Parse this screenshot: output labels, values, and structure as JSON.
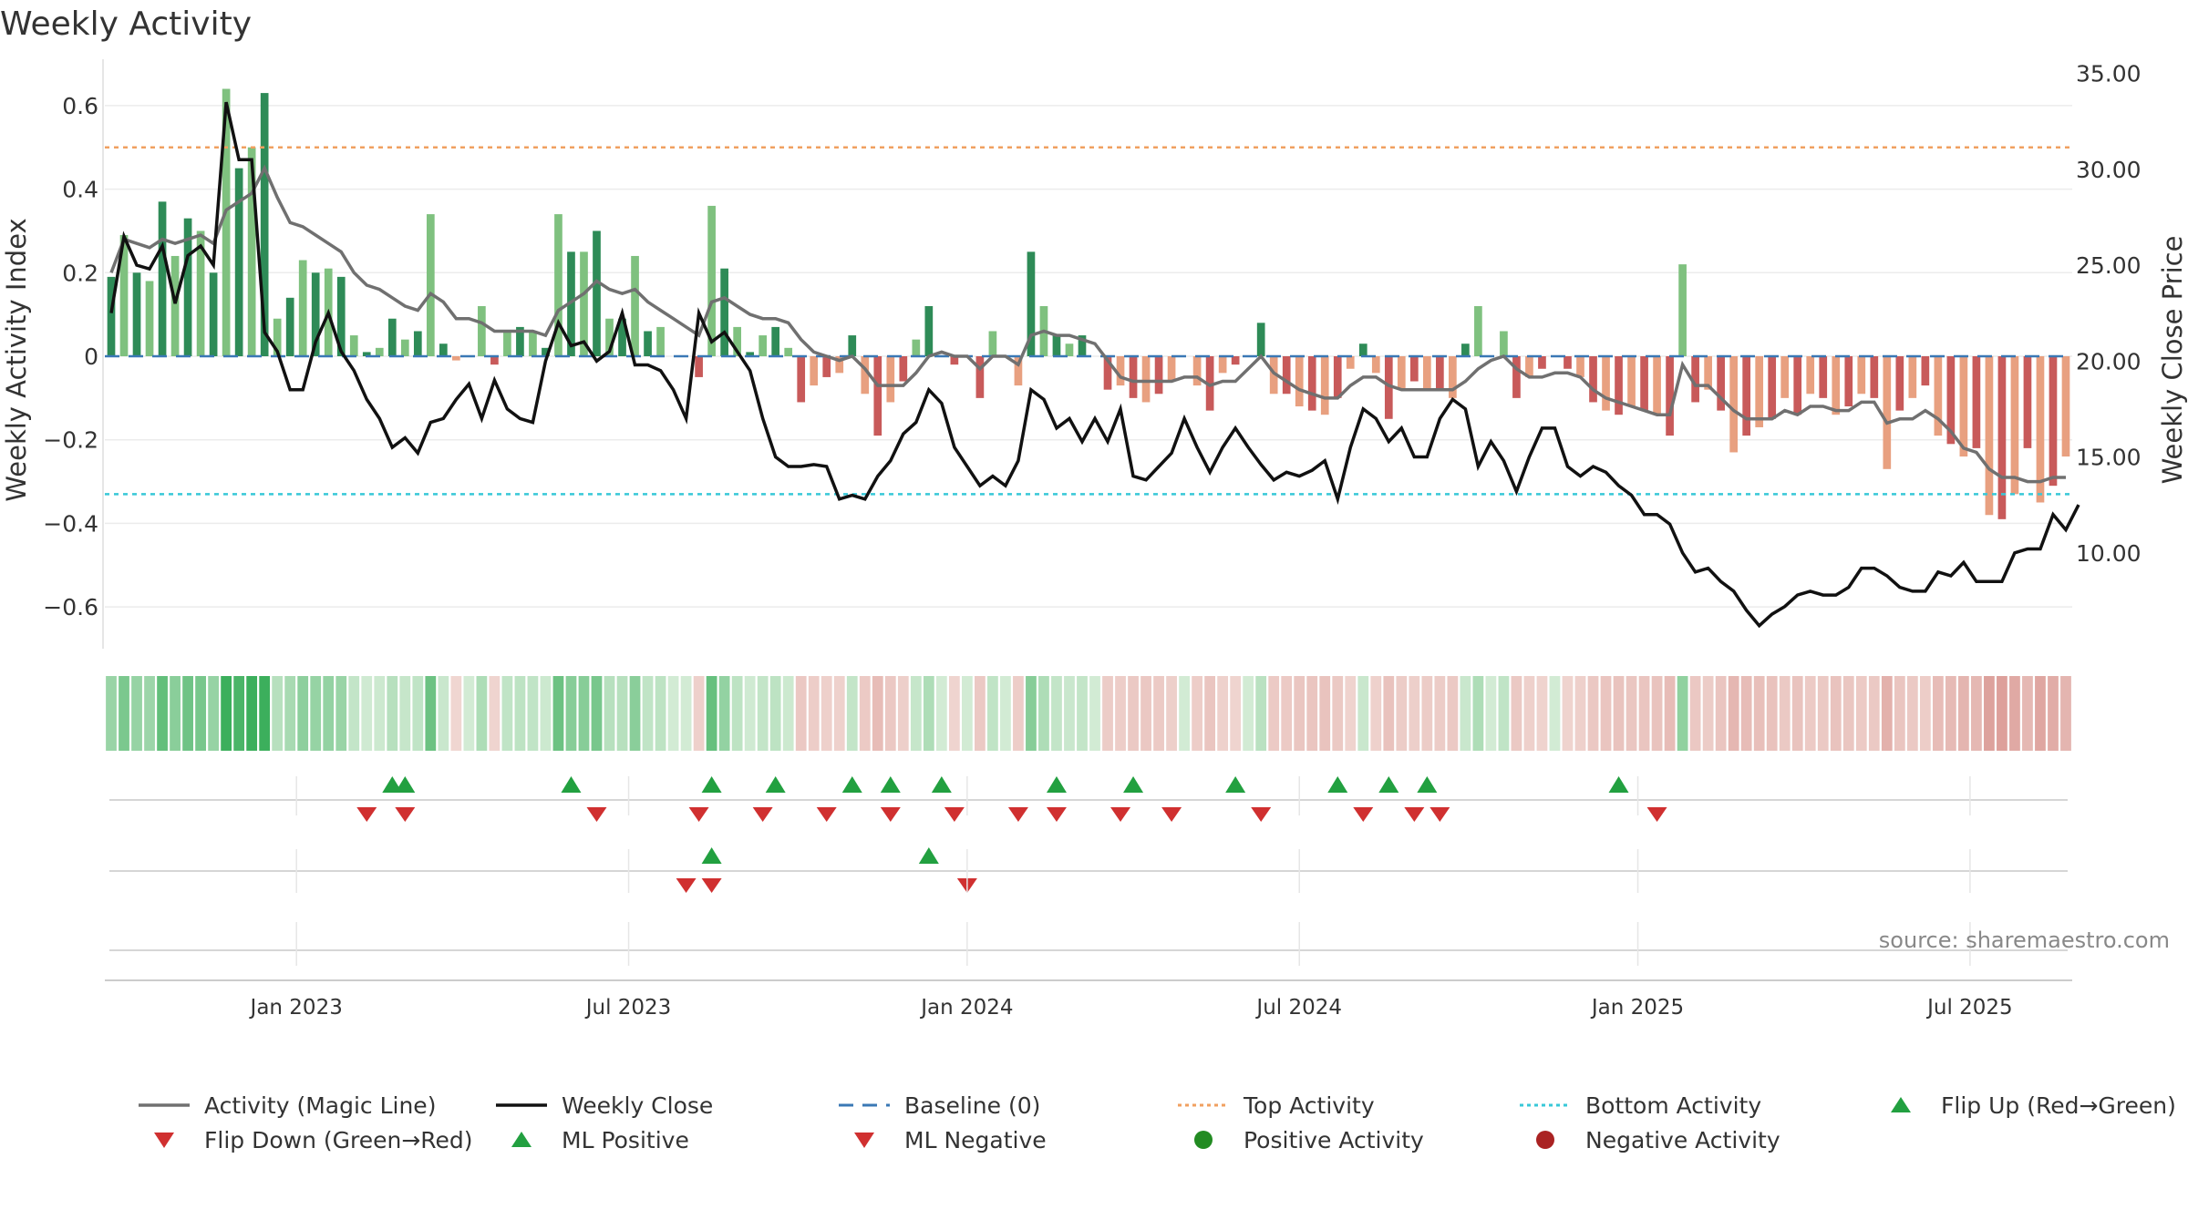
{
  "title": "Weekly Activity",
  "source": "source: sharemaestro.com",
  "colors": {
    "magic_line": "#707070",
    "close": "#111111",
    "baseline": "#3a78b5",
    "top": "#f0a060",
    "bottom": "#38c8d8",
    "pos_dark": "#2e8b57",
    "pos_light": "#7fc17f",
    "neg_dark": "#c85a5a",
    "neg_light": "#e8a080",
    "flip_up": "#22a040",
    "flip_down": "#d03030",
    "pos_dot": "#228b22",
    "neg_dot": "#aa2222"
  },
  "chart_data": {
    "type": "bar+line",
    "title": "Weekly Activity",
    "ylabel_left": "Weekly Activity Index",
    "ylabel_right": "Weekly Close Price",
    "ylim_left": [
      -0.7,
      0.7
    ],
    "ylim_right": [
      5.0,
      35.5
    ],
    "yticks_left": [
      0.6,
      0.4,
      0.2,
      0,
      -0.2,
      -0.4,
      -0.6
    ],
    "ytick_labels_left": [
      "0.6",
      "0.4",
      "0.2",
      "0",
      "−0.2",
      "−0.4",
      "−0.6"
    ],
    "yticks_right": [
      35,
      30,
      25,
      20,
      15,
      10
    ],
    "ytick_labels_right": [
      "35.00",
      "30.00",
      "25.00",
      "20.00",
      "15.00",
      "10.00"
    ],
    "x_start": "2022-09-18",
    "x_end": "2025-09-21",
    "x_ticks": [
      {
        "label": "Jan 2023",
        "week": 15
      },
      {
        "label": "Jul 2023",
        "week": 41
      },
      {
        "label": "Jan 2024",
        "week": 67.5
      },
      {
        "label": "Jul 2024",
        "week": 93.5
      },
      {
        "label": "Jan 2025",
        "week": 120
      },
      {
        "label": "Jul 2025",
        "week": 146
      }
    ],
    "top_activity": 0.5,
    "bottom_activity": -0.33,
    "activity_index": [
      0.19,
      0.29,
      0.2,
      0.18,
      0.37,
      0.24,
      0.33,
      0.3,
      0.2,
      0.64,
      0.45,
      0.5,
      0.63,
      0.09,
      0.14,
      0.23,
      0.2,
      0.21,
      0.19,
      0.05,
      0.01,
      0.02,
      0.09,
      0.04,
      0.06,
      0.34,
      0.03,
      -0.01,
      0.0,
      0.12,
      -0.02,
      0.06,
      0.07,
      0.06,
      0.02,
      0.34,
      0.25,
      0.25,
      0.3,
      0.09,
      0.09,
      0.24,
      0.06,
      0.07,
      0.0,
      0.0,
      -0.05,
      0.36,
      0.21,
      0.07,
      0.01,
      0.05,
      0.07,
      0.02,
      -0.11,
      -0.07,
      -0.05,
      -0.04,
      0.05,
      -0.09,
      -0.19,
      -0.11,
      -0.06,
      0.04,
      0.12,
      0.0,
      -0.02,
      0.0,
      -0.1,
      0.06,
      0.0,
      -0.07,
      0.25,
      0.12,
      0.05,
      0.03,
      0.05,
      0.0,
      -0.08,
      -0.07,
      -0.1,
      -0.11,
      -0.09,
      -0.06,
      0.0,
      -0.07,
      -0.13,
      -0.04,
      -0.02,
      0.0,
      0.08,
      -0.09,
      -0.09,
      -0.12,
      -0.13,
      -0.14,
      -0.1,
      -0.03,
      0.03,
      -0.04,
      -0.15,
      -0.08,
      -0.06,
      -0.08,
      -0.08,
      -0.1,
      0.03,
      0.12,
      0.0,
      0.06,
      -0.1,
      -0.05,
      -0.03,
      0.0,
      -0.03,
      -0.05,
      -0.11,
      -0.13,
      -0.14,
      -0.12,
      -0.13,
      -0.14,
      -0.19,
      0.22,
      -0.11,
      -0.08,
      -0.13,
      -0.23,
      -0.19,
      -0.17,
      -0.15,
      -0.1,
      -0.14,
      -0.09,
      -0.1,
      -0.14,
      -0.12,
      -0.09,
      -0.1,
      -0.27,
      -0.13,
      -0.1,
      -0.07,
      -0.19,
      -0.21,
      -0.24,
      -0.22,
      -0.38,
      -0.39,
      -0.33,
      -0.22,
      -0.35,
      -0.31,
      -0.24
    ],
    "magic_line": [
      0.2,
      0.28,
      0.27,
      0.26,
      0.28,
      0.27,
      0.28,
      0.29,
      0.27,
      0.35,
      0.37,
      0.39,
      0.45,
      0.38,
      0.32,
      0.31,
      0.29,
      0.27,
      0.25,
      0.2,
      0.17,
      0.16,
      0.14,
      0.12,
      0.11,
      0.15,
      0.13,
      0.09,
      0.09,
      0.08,
      0.06,
      0.06,
      0.06,
      0.06,
      0.05,
      0.11,
      0.13,
      0.15,
      0.18,
      0.16,
      0.15,
      0.16,
      0.13,
      0.11,
      0.09,
      0.07,
      0.05,
      0.13,
      0.14,
      0.12,
      0.1,
      0.09,
      0.09,
      0.08,
      0.04,
      0.01,
      0.0,
      -0.01,
      0.0,
      -0.03,
      -0.07,
      -0.07,
      -0.07,
      -0.04,
      0.0,
      0.01,
      0.0,
      0.0,
      -0.03,
      0.0,
      0.0,
      -0.02,
      0.05,
      0.06,
      0.05,
      0.05,
      0.04,
      0.03,
      -0.01,
      -0.05,
      -0.06,
      -0.06,
      -0.06,
      -0.06,
      -0.05,
      -0.05,
      -0.07,
      -0.06,
      -0.06,
      -0.03,
      0.0,
      -0.04,
      -0.06,
      -0.08,
      -0.09,
      -0.1,
      -0.1,
      -0.07,
      -0.05,
      -0.05,
      -0.07,
      -0.08,
      -0.08,
      -0.08,
      -0.08,
      -0.08,
      -0.06,
      -0.03,
      -0.01,
      0.0,
      -0.03,
      -0.05,
      -0.05,
      -0.04,
      -0.04,
      -0.05,
      -0.08,
      -0.1,
      -0.11,
      -0.12,
      -0.13,
      -0.14,
      -0.14,
      -0.02,
      -0.07,
      -0.07,
      -0.1,
      -0.13,
      -0.15,
      -0.15,
      -0.15,
      -0.13,
      -0.14,
      -0.12,
      -0.12,
      -0.13,
      -0.13,
      -0.11,
      -0.11,
      -0.16,
      -0.15,
      -0.15,
      -0.13,
      -0.15,
      -0.18,
      -0.22,
      -0.23,
      -0.27,
      -0.29,
      -0.29,
      -0.3,
      -0.3,
      -0.29,
      -0.29
    ],
    "weekly_close": [
      22.5,
      26.5,
      25.0,
      24.8,
      26.0,
      23.0,
      25.5,
      26.0,
      25.0,
      33.5,
      30.5,
      30.5,
      21.5,
      20.5,
      18.5,
      18.5,
      21.0,
      22.5,
      20.5,
      19.5,
      18.0,
      17.0,
      15.5,
      16.0,
      15.2,
      16.8,
      17.0,
      18.0,
      18.8,
      17.0,
      19.0,
      17.5,
      17.0,
      16.8,
      20.0,
      22.0,
      20.8,
      21.0,
      20.0,
      20.5,
      22.5,
      19.8,
      19.8,
      19.5,
      18.5,
      17.0,
      22.5,
      21.0,
      21.5,
      20.5,
      19.5,
      17.0,
      15.0,
      14.5,
      14.5,
      14.6,
      14.5,
      12.8,
      13.0,
      12.8,
      14.0,
      14.8,
      16.2,
      16.8,
      18.5,
      17.8,
      15.5,
      14.5,
      13.5,
      14.0,
      13.5,
      14.8,
      18.5,
      18.0,
      16.5,
      17.0,
      15.8,
      17.0,
      15.8,
      17.5,
      14.0,
      13.8,
      14.5,
      15.2,
      17.0,
      15.5,
      14.2,
      15.5,
      16.5,
      15.5,
      14.6,
      13.8,
      14.2,
      14.0,
      14.3,
      14.8,
      12.8,
      15.5,
      17.5,
      17.0,
      15.8,
      16.5,
      15.0,
      15.0,
      17.0,
      18.0,
      17.5,
      14.5,
      15.8,
      14.8,
      13.2,
      15.0,
      16.5,
      16.5,
      14.5,
      14.0,
      14.5,
      14.2,
      13.5,
      13.0,
      12.0,
      12.0,
      11.5,
      10.0,
      9.0,
      9.2,
      8.5,
      8.0,
      7.0,
      6.2,
      6.8,
      7.2,
      7.8,
      8.0,
      7.8,
      7.8,
      8.2,
      9.2,
      9.2,
      8.8,
      8.2,
      8.0,
      8.0,
      9.0,
      8.8,
      9.5,
      8.5,
      8.5,
      8.5,
      10.0,
      10.2,
      10.2,
      12.0,
      11.2,
      12.5
    ]
  },
  "signal_rows": {
    "ml_flip_up_weeks": [
      22,
      23,
      36,
      47,
      52,
      58,
      61,
      65,
      74,
      80,
      88,
      96,
      100,
      103,
      118
    ],
    "ml_flip_down_weeks": [
      20,
      23,
      38,
      46,
      51,
      56,
      61,
      66,
      71,
      74,
      79,
      83,
      90,
      98,
      102,
      104,
      121
    ],
    "ml2_up_weeks": [
      47,
      64
    ],
    "ml2_down_weeks": [
      45,
      47,
      67
    ]
  },
  "legend": [
    {
      "label": "Activity (Magic Line)",
      "sym": "solid-gray"
    },
    {
      "label": "Weekly Close",
      "sym": "solid-black"
    },
    {
      "label": "Baseline (0)",
      "sym": "dash-blue"
    },
    {
      "label": "Top Activity",
      "sym": "dot-orange"
    },
    {
      "label": "Bottom Activity",
      "sym": "dot-cyan"
    },
    {
      "label": "Flip Up (Red→Green)",
      "sym": "tri-up"
    },
    {
      "label": "Flip Down (Green→Red)",
      "sym": "tri-down"
    },
    {
      "label": "ML Positive",
      "sym": "tri-up"
    },
    {
      "label": "ML Negative",
      "sym": "tri-down"
    },
    {
      "label": "Positive Activity",
      "sym": "dot-green"
    },
    {
      "label": "Negative Activity",
      "sym": "dot-red"
    }
  ]
}
